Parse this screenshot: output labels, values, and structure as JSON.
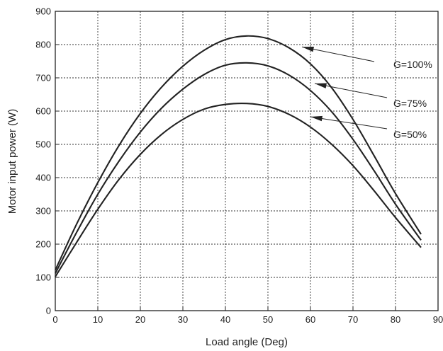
{
  "chart_data": {
    "type": "line",
    "title": "",
    "xlabel": "Load angle (Deg)",
    "ylabel": "Motor input power (W)",
    "xlim": [
      0,
      90
    ],
    "ylim": [
      0,
      900
    ],
    "x_ticks": [
      0,
      10,
      20,
      30,
      40,
      50,
      60,
      70,
      80,
      90
    ],
    "y_ticks": [
      0,
      100,
      200,
      300,
      400,
      500,
      600,
      700,
      800,
      900
    ],
    "grid": true,
    "grid_style": "dotted",
    "line_color": "#222222",
    "series": [
      {
        "name": "G=100%",
        "x": [
          0,
          5,
          10,
          15,
          20,
          25,
          30,
          35,
          40,
          45,
          50,
          55,
          60,
          65,
          70,
          75,
          80,
          86
        ],
        "y": [
          122,
          260,
          385,
          497,
          593,
          672,
          735,
          783,
          815,
          826,
          818,
          790,
          742,
          670,
          575,
          465,
          352,
          230
        ]
      },
      {
        "name": "G=75%",
        "x": [
          0,
          5,
          10,
          15,
          20,
          25,
          30,
          35,
          40,
          45,
          50,
          55,
          60,
          65,
          70,
          75,
          80,
          86
        ],
        "y": [
          112,
          235,
          350,
          450,
          537,
          609,
          666,
          710,
          738,
          745,
          736,
          708,
          662,
          598,
          515,
          420,
          320,
          212
        ]
      },
      {
        "name": "G=50%",
        "x": [
          0,
          5,
          10,
          15,
          20,
          25,
          30,
          35,
          40,
          45,
          50,
          55,
          60,
          65,
          70,
          75,
          80,
          86
        ],
        "y": [
          102,
          205,
          305,
          395,
          470,
          530,
          575,
          606,
          620,
          623,
          614,
          590,
          552,
          500,
          436,
          360,
          280,
          190
        ]
      }
    ],
    "annotations": [
      {
        "text": "G=100%",
        "target_x": 58,
        "target_y": 793
      },
      {
        "text": "G=75%",
        "target_x": 61,
        "target_y": 683
      },
      {
        "text": "G=50%",
        "target_x": 60,
        "target_y": 583
      }
    ]
  }
}
